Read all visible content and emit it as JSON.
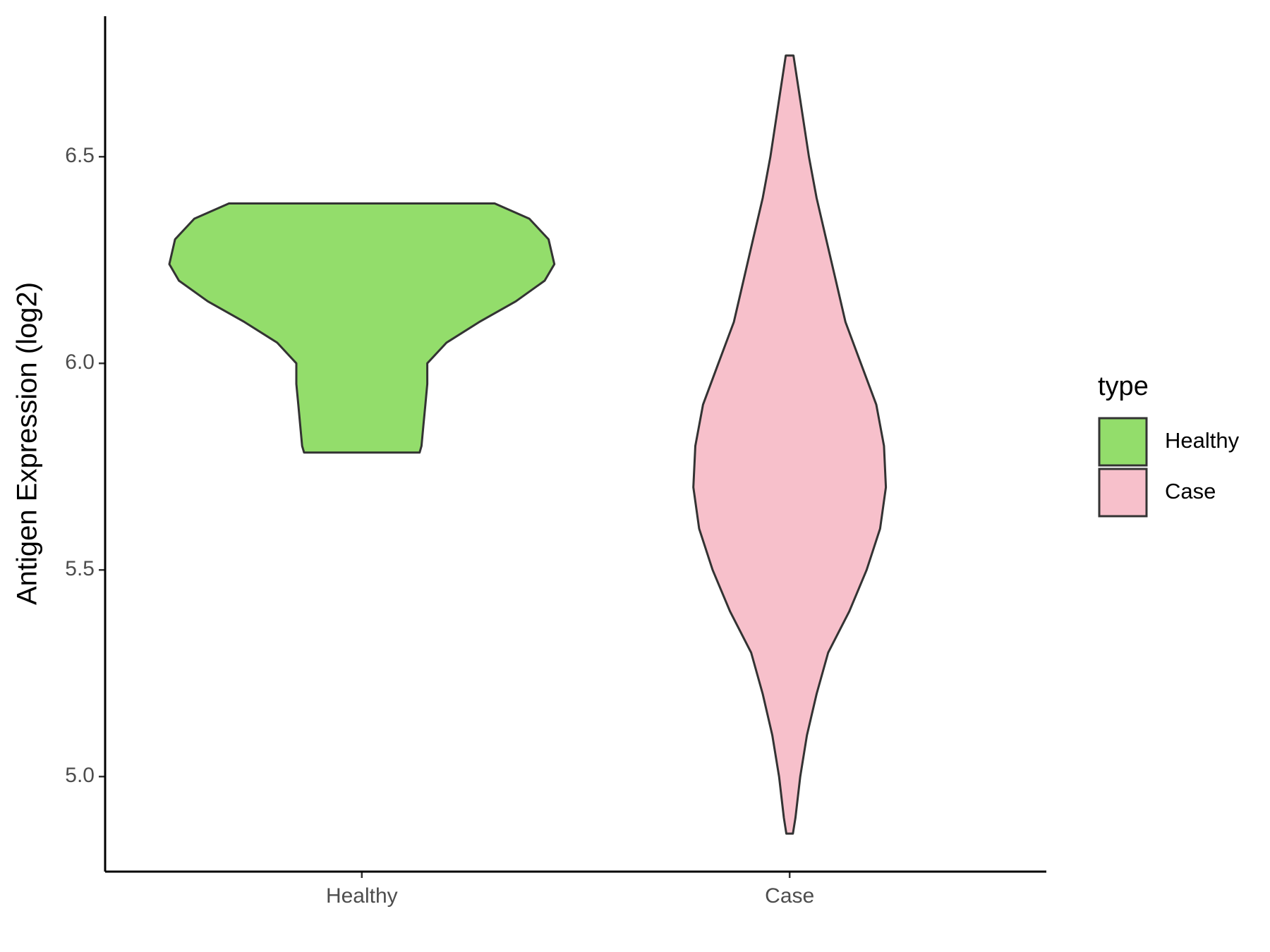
{
  "chart_data": {
    "type": "violin",
    "y_label": "Antigen Expression (log2)",
    "categories": [
      "Healthy",
      "Case"
    ],
    "legend_title": "type",
    "legend": "right",
    "ylim": [
      4.77,
      6.84
    ],
    "yticks": [
      {
        "value": 5,
        "label": "5.0"
      },
      5.5,
      {
        "value": 6,
        "label": "6.0"
      },
      6.5
    ],
    "series": [
      {
        "name": "Healthy",
        "color": "#93dd6b",
        "y": [
          6.387,
          6.35,
          6.3,
          6.24,
          6.2,
          6.15,
          6.1,
          6.05,
          6.0,
          5.95,
          5.9,
          5.85,
          5.8,
          5.784
        ],
        "widths": [
          0.69,
          0.87,
          0.97,
          1,
          0.95,
          0.8,
          0.61,
          0.44,
          0.34,
          0.34,
          0.33,
          0.32,
          0.31,
          0.3
        ]
      },
      {
        "name": "Case",
        "color": "#f7c0cb",
        "y": [
          6.745,
          6.5,
          6.4,
          6.3,
          6.2,
          6.1,
          6.0,
          5.9,
          5.8,
          5.7,
          5.6,
          5.5,
          5.4,
          5.3,
          5.2,
          5.1,
          5.0,
          4.9,
          4.862
        ],
        "widths": [
          0.02,
          0.1,
          0.14,
          0.19,
          0.24,
          0.29,
          0.37,
          0.45,
          0.49,
          0.5,
          0.47,
          0.4,
          0.31,
          0.2,
          0.14,
          0.09,
          0.055,
          0.03,
          0.017
        ]
      }
    ]
  }
}
